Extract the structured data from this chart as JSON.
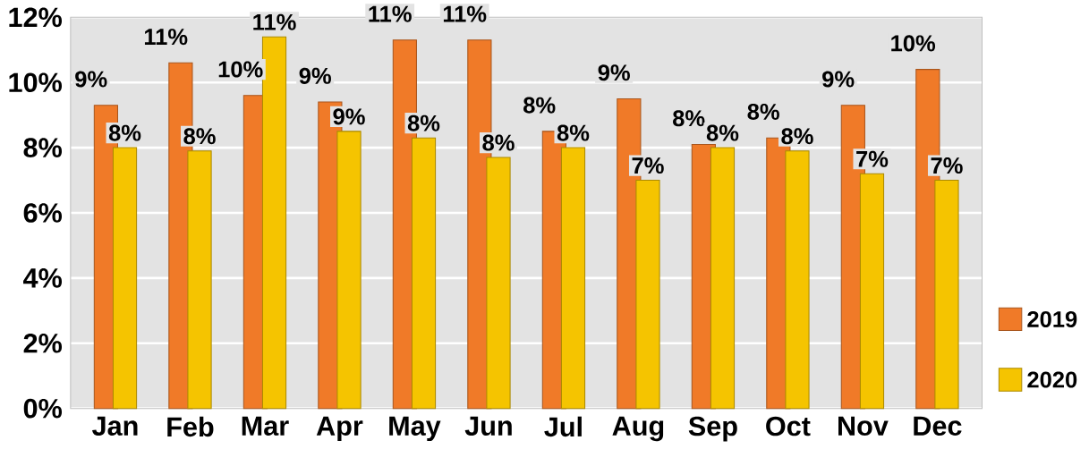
{
  "chart_data": {
    "type": "bar",
    "categories": [
      "Jan",
      "Feb",
      "Mar",
      "Apr",
      "May",
      "Jun",
      "Jul",
      "Aug",
      "Sep",
      "Oct",
      "Nov",
      "Dec"
    ],
    "series": [
      {
        "name": "2019",
        "color": "#f07a28",
        "values": [
          9.3,
          10.6,
          9.6,
          9.4,
          11.3,
          11.3,
          8.5,
          9.5,
          8.1,
          8.3,
          9.3,
          10.4
        ],
        "value_labels": [
          "9%",
          "11%",
          "10%",
          "9%",
          "11%",
          "11%",
          "8%",
          "9%",
          "8%",
          "8%",
          "9%",
          "10%"
        ]
      },
      {
        "name": "2020",
        "color": "#f5c400",
        "values": [
          8.0,
          7.9,
          11.4,
          8.5,
          8.3,
          7.7,
          8.0,
          7.0,
          8.0,
          7.9,
          7.2,
          7.0
        ],
        "value_labels": [
          "8%",
          "8%",
          "11%",
          "9%",
          "8%",
          "8%",
          "8%",
          "7%",
          "8%",
          "8%",
          "7%",
          "7%"
        ]
      }
    ],
    "ylim": [
      0,
      12
    ],
    "yticks": [
      {
        "value": 0,
        "label": "0%"
      },
      {
        "value": 2,
        "label": "2%"
      },
      {
        "value": 4,
        "label": "4%"
      },
      {
        "value": 6,
        "label": "6%"
      },
      {
        "value": 8,
        "label": "8%"
      },
      {
        "value": 10,
        "label": "10%"
      },
      {
        "value": 12,
        "label": "12%"
      }
    ],
    "grid": "y",
    "legend": "right"
  }
}
